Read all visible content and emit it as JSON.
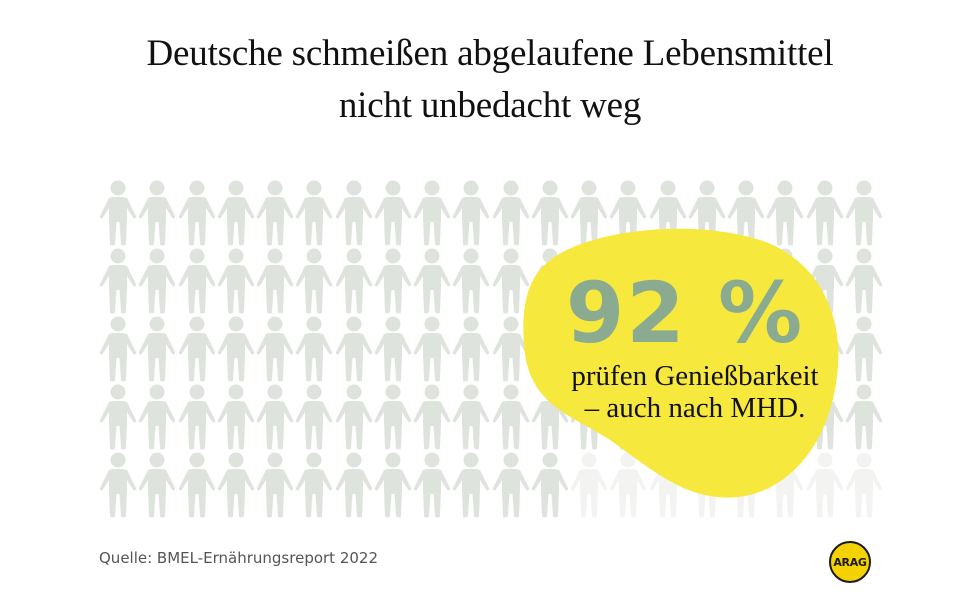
{
  "title": {
    "line1": "Deutsche schmeißen abgelaufene Lebensmittel",
    "line2": "nicht unbedacht weg"
  },
  "highlight": {
    "value": "92 %",
    "line1": "prüfen Genießbarkeit",
    "line2": "– auch nach MHD."
  },
  "source": "Quelle:  BMEL-Ernährungsreport 2022",
  "logo": "ARAG",
  "colors": {
    "figure_filled": "#dfe3dd",
    "figure_faded": "#f3f4f2",
    "highlight_yellow": "#f7e83e",
    "value_green": "#8aab8f",
    "logo_yellow": "#f4d200"
  },
  "chart_data": {
    "type": "pictogram",
    "title": "Deutsche schmeißen abgelaufene Lebensmittel nicht unbedacht weg",
    "rows": 5,
    "columns": 20,
    "total": 100,
    "filled": 92,
    "unfilled": 8,
    "value_label": "92 %",
    "annotation": "prüfen Genießbarkeit – auch nach MHD.",
    "source": "BMEL-Ernährungsreport 2022"
  }
}
